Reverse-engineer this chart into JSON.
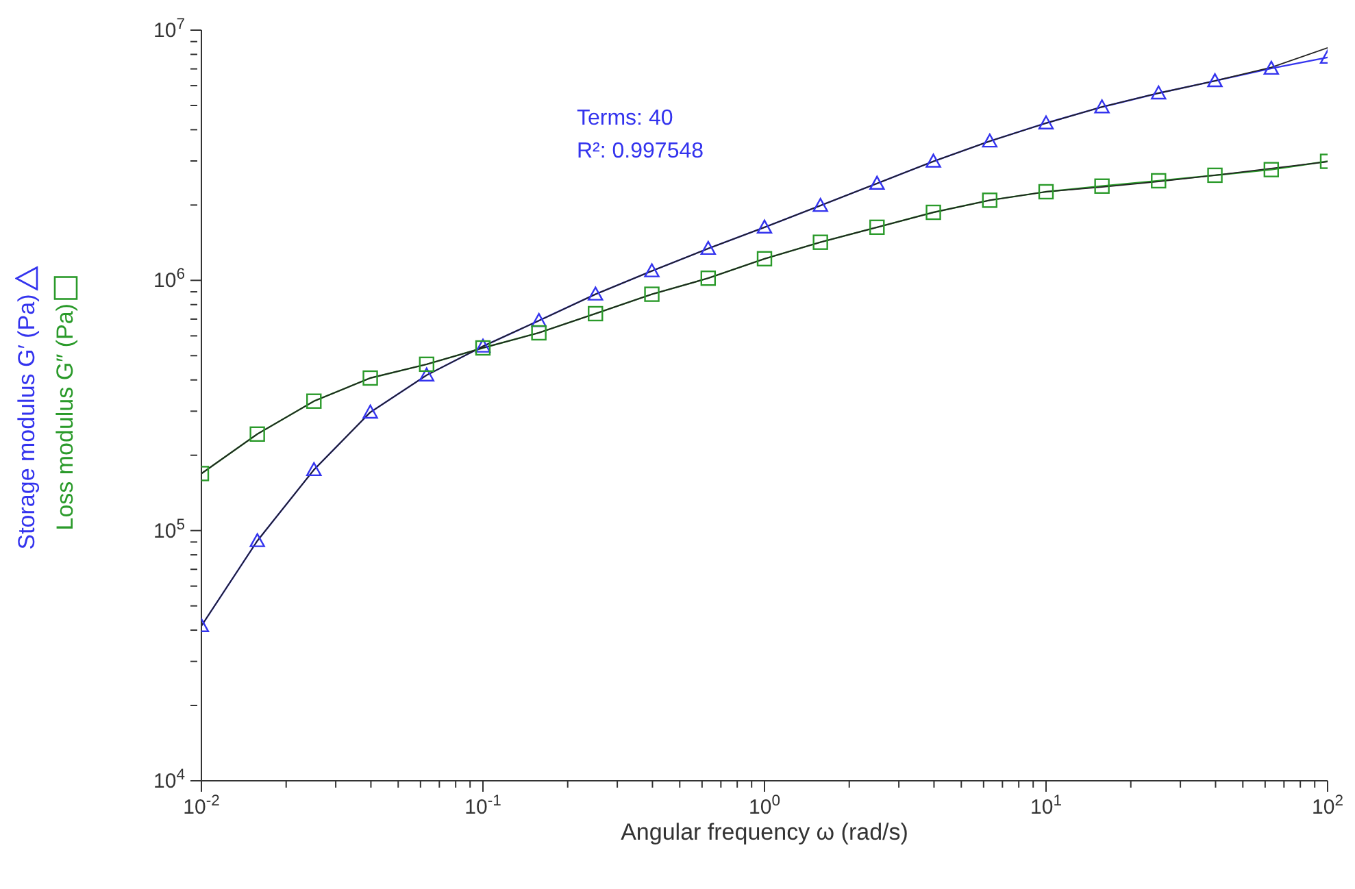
{
  "chart_data": {
    "type": "line",
    "xlabel": "Angular frequency  ω  (rad/s)",
    "annotations": [
      "Terms: 40",
      "R²: 0.997548"
    ],
    "log": "xy",
    "grid": false,
    "legend": "left",
    "line_style": "solid",
    "xlim": [
      0.01,
      100
    ],
    "ylim": [
      10000,
      10000000
    ],
    "xticks": [
      {
        "value": 0.01,
        "label": "10$^{-2}$"
      },
      {
        "value": 0.02,
        "label": null
      },
      {
        "value": 0.03,
        "label": null
      },
      {
        "value": 0.04,
        "label": null
      },
      {
        "value": 0.05,
        "label": null
      },
      {
        "value": 0.06,
        "label": null
      },
      {
        "value": 0.07,
        "label": null
      },
      {
        "value": 0.08,
        "label": null
      },
      {
        "value": 0.09,
        "label": null
      },
      {
        "value": 0.1,
        "label": "10$^{-1}$"
      },
      {
        "value": 0.2,
        "label": null
      },
      {
        "value": 0.3,
        "label": null
      },
      {
        "value": 0.4,
        "label": null
      },
      {
        "value": 0.5,
        "label": null
      },
      {
        "value": 0.6,
        "label": null
      },
      {
        "value": 0.7,
        "label": null
      },
      {
        "value": 0.8,
        "label": null
      },
      {
        "value": 0.9,
        "label": null
      },
      {
        "value": 1,
        "label": "10$^{0}$"
      },
      {
        "value": 2,
        "label": null
      },
      {
        "value": 3,
        "label": null
      },
      {
        "value": 4,
        "label": null
      },
      {
        "value": 5,
        "label": null
      },
      {
        "value": 6,
        "label": null
      },
      {
        "value": 7,
        "label": null
      },
      {
        "value": 8,
        "label": null
      },
      {
        "value": 9,
        "label": null
      },
      {
        "value": 10,
        "label": "10$^{1}$"
      },
      {
        "value": 20,
        "label": null
      },
      {
        "value": 30,
        "label": null
      },
      {
        "value": 40,
        "label": null
      },
      {
        "value": 50,
        "label": null
      },
      {
        "value": 60,
        "label": null
      },
      {
        "value": 70,
        "label": null
      },
      {
        "value": 80,
        "label": null
      },
      {
        "value": 90,
        "label": null
      },
      {
        "value": 100,
        "label": "10$^{2}$"
      }
    ],
    "yticks": [
      {
        "value": 10000,
        "label": "10$^{4}$"
      },
      {
        "value": 20000,
        "label": null
      },
      {
        "value": 30000,
        "label": null
      },
      {
        "value": 40000,
        "label": null
      },
      {
        "value": 50000,
        "label": null
      },
      {
        "value": 60000,
        "label": null
      },
      {
        "value": 70000,
        "label": null
      },
      {
        "value": 80000,
        "label": null
      },
      {
        "value": 90000,
        "label": null
      },
      {
        "value": 100000,
        "label": "10$^{5}$"
      },
      {
        "value": 200000,
        "label": null
      },
      {
        "value": 300000,
        "label": null
      },
      {
        "value": 400000,
        "label": null
      },
      {
        "value": 500000,
        "label": null
      },
      {
        "value": 600000,
        "label": null
      },
      {
        "value": 700000,
        "label": null
      },
      {
        "value": 800000,
        "label": null
      },
      {
        "value": 900000,
        "label": null
      },
      {
        "value": 1000000,
        "label": "10$^{6}$"
      },
      {
        "value": 2000000,
        "label": null
      },
      {
        "value": 3000000,
        "label": null
      },
      {
        "value": 4000000,
        "label": null
      },
      {
        "value": 5000000,
        "label": null
      },
      {
        "value": 6000000,
        "label": null
      },
      {
        "value": 7000000,
        "label": null
      },
      {
        "value": 8000000,
        "label": null
      },
      {
        "value": 9000000,
        "label": null
      },
      {
        "value": 10000000,
        "label": "10$^{7}$"
      }
    ],
    "x": [
      0.01,
      0.0158,
      0.0251,
      0.0398,
      0.0631,
      0.1,
      0.158,
      0.251,
      0.398,
      0.631,
      1,
      1.58,
      2.51,
      3.98,
      6.31,
      10,
      15.8,
      25.1,
      39.8,
      63.1,
      100
    ],
    "series": [
      {
        "name": "Storage modulus G′ (Pa)",
        "color": "#3333ee",
        "marker": "triangle",
        "values": [
          41600,
          91000,
          175000,
          297000,
          418000,
          545000,
          690000,
          880000,
          1090000,
          1340000,
          1630000,
          1990000,
          2440000,
          2990000,
          3600000,
          4250000,
          4930000,
          5600000,
          6270000,
          7030000,
          7780000
        ]
      },
      {
        "name": "Loss modulus G″ (Pa)",
        "color": "#2a9a2a",
        "marker": "square",
        "values": [
          169000,
          243000,
          329000,
          407000,
          462000,
          537000,
          617000,
          736000,
          880000,
          1020000,
          1220000,
          1420000,
          1630000,
          1870000,
          2090000,
          2260000,
          2380000,
          2500000,
          2630000,
          2770000,
          2990000
        ]
      },
      {
        "color": "#222222",
        "marker": "none",
        "values": [
          41600,
          91000,
          175000,
          297000,
          418000,
          545000,
          690000,
          880000,
          1090000,
          1340000,
          1630000,
          1990000,
          2440000,
          2990000,
          3600000,
          4250000,
          4930000,
          5600000,
          6270000,
          7100000,
          8500000
        ]
      },
      {
        "color": "#222222",
        "marker": "none",
        "values": [
          169000,
          243000,
          329000,
          407000,
          462000,
          537000,
          617000,
          736000,
          880000,
          1020000,
          1220000,
          1420000,
          1630000,
          1870000,
          2090000,
          2260000,
          2360000,
          2480000,
          2630000,
          2800000,
          2980000
        ]
      }
    ]
  }
}
